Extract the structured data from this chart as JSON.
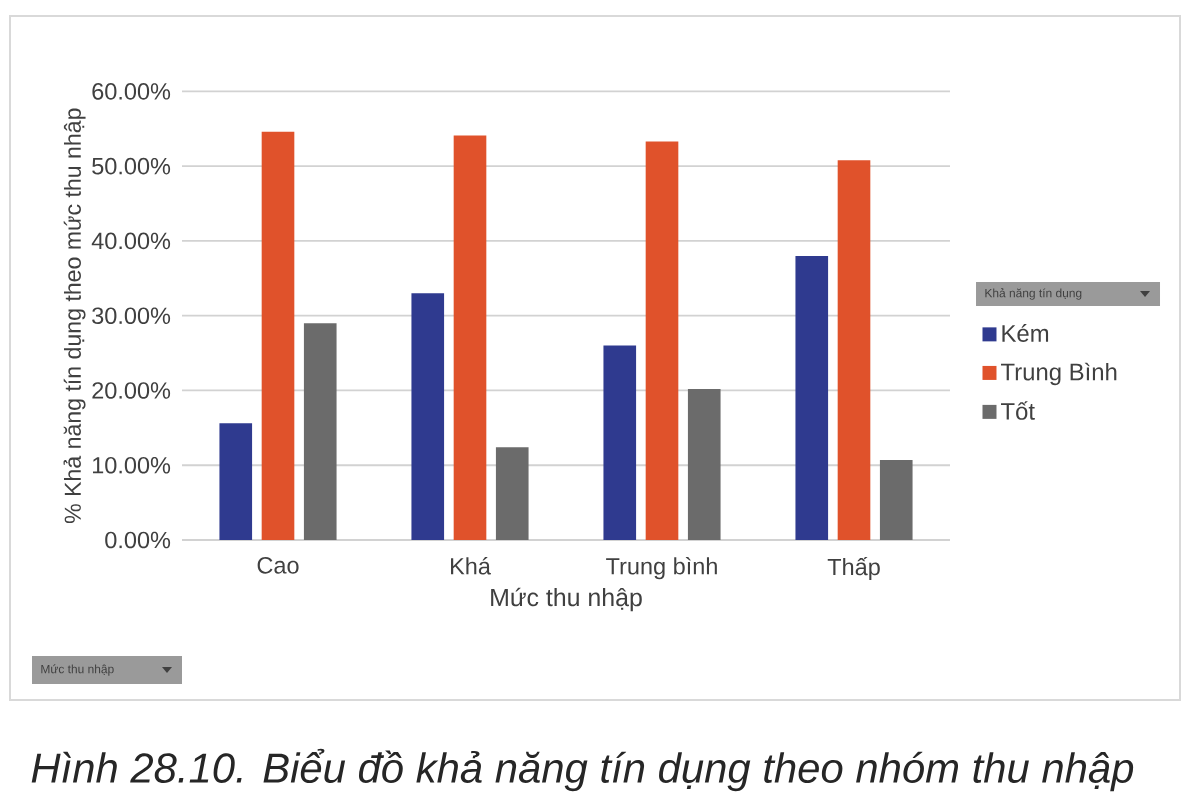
{
  "chart_data": {
    "type": "bar",
    "xlabel": "Mức thu nhập",
    "ylabel": "% Khả năng tín dụng theo mức thu nhập",
    "legend_title": "Khả năng tín dụng",
    "categories": [
      "Cao",
      "Khá",
      "Trung bình",
      "Thấp"
    ],
    "series": [
      {
        "name": "Kém",
        "color": "#2f3a8f",
        "values": [
          15.6,
          33.0,
          26.0,
          38.0
        ]
      },
      {
        "name": "Trung Bình",
        "color": "#e0522b",
        "values": [
          54.6,
          54.1,
          53.3,
          50.8
        ]
      },
      {
        "name": "Tốt",
        "color": "#6b6b6b",
        "values": [
          29.0,
          12.4,
          20.2,
          10.7
        ]
      }
    ],
    "ylim": [
      0,
      60
    ],
    "yticks": [
      {
        "value": 0,
        "label": "0.00%"
      },
      {
        "value": 10,
        "label": "10.00%"
      },
      {
        "value": 20,
        "label": "20.00%"
      },
      {
        "value": 30,
        "label": "30.00%"
      },
      {
        "value": 40,
        "label": "40.00%"
      },
      {
        "value": 50,
        "label": "50.00%"
      },
      {
        "value": 60,
        "label": "60.00%"
      }
    ],
    "grid": "y",
    "legend": "right",
    "annotations": [
      "Mức thu nhập",
      "Hình 28.10. Biểu đồ khả năng tín dụng theo nhóm thu nhập"
    ]
  }
}
